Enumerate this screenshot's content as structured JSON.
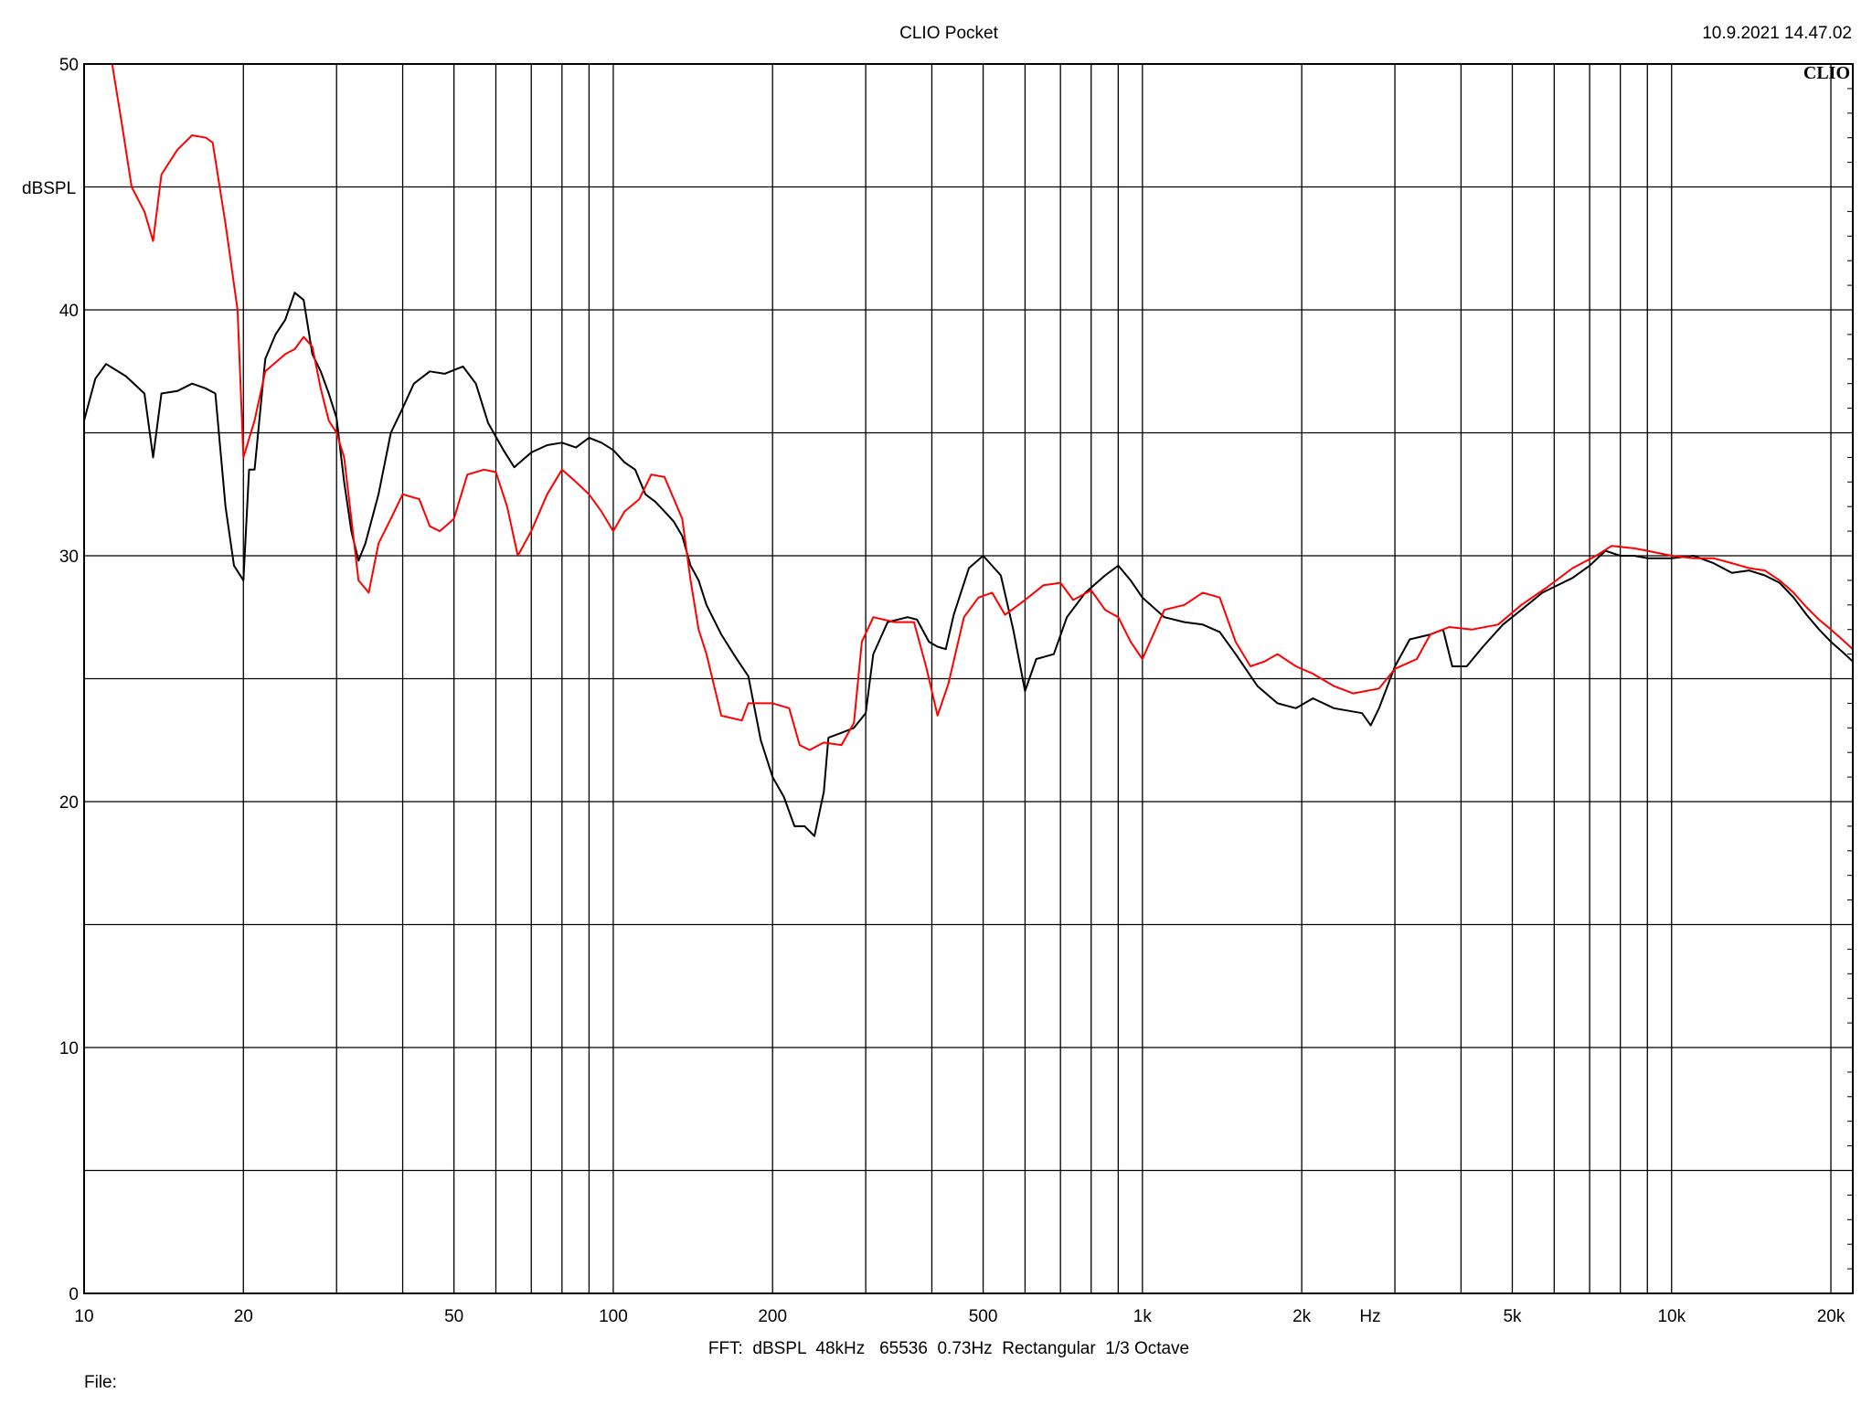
{
  "header": {
    "title": "CLIO Pocket",
    "timestamp": "10.9.2021 14.47.02",
    "logo": "CLIO"
  },
  "footer": {
    "settings": "FFT:  dBSPL  48kHz   65536  0.73Hz  Rectangular  1/3 Octave",
    "file_label": "File:"
  },
  "chart_data": {
    "type": "line",
    "title": "CLIO Pocket",
    "ylabel": "dBSPL",
    "xunit": "Hz",
    "xscale": "log",
    "xlim": [
      10,
      22000
    ],
    "ylim": [
      0,
      50
    ],
    "grid": true,
    "xticks": [
      {
        "value": 10,
        "label": "10"
      },
      {
        "value": 20,
        "label": "20"
      },
      {
        "value": 50,
        "label": "50"
      },
      {
        "value": 100,
        "label": "100"
      },
      {
        "value": 200,
        "label": "200"
      },
      {
        "value": 500,
        "label": "500"
      },
      {
        "value": 1000,
        "label": "1k"
      },
      {
        "value": 2000,
        "label": "2k"
      },
      {
        "value": 5000,
        "label": "5k"
      },
      {
        "value": 10000,
        "label": "10k"
      },
      {
        "value": 20000,
        "label": "20k"
      }
    ],
    "yticks": [
      0,
      10,
      20,
      30,
      40,
      50
    ],
    "colors": {
      "black": "#000000",
      "red": "#ff0000",
      "grid": "#000000"
    },
    "series": [
      {
        "color": "#000000",
        "points": [
          [
            10,
            35.5
          ],
          [
            10.5,
            37.2
          ],
          [
            11,
            37.8
          ],
          [
            12,
            37.3
          ],
          [
            13,
            36.6
          ],
          [
            13.5,
            34.0
          ],
          [
            14,
            36.6
          ],
          [
            15,
            36.7
          ],
          [
            16,
            37.0
          ],
          [
            17,
            36.8
          ],
          [
            17.7,
            36.6
          ],
          [
            18.5,
            32.0
          ],
          [
            19.2,
            29.6
          ],
          [
            20,
            29.0
          ],
          [
            20.5,
            33.5
          ],
          [
            21,
            33.5
          ],
          [
            22,
            38.0
          ],
          [
            23,
            39.0
          ],
          [
            24,
            39.6
          ],
          [
            25,
            40.7
          ],
          [
            26,
            40.4
          ],
          [
            27,
            38.2
          ],
          [
            28,
            37.5
          ],
          [
            29,
            36.6
          ],
          [
            30,
            35.6
          ],
          [
            31,
            33.0
          ],
          [
            32,
            31.0
          ],
          [
            33,
            29.8
          ],
          [
            34,
            30.5
          ],
          [
            36,
            32.5
          ],
          [
            38,
            35.0
          ],
          [
            40,
            36.0
          ],
          [
            42,
            37.0
          ],
          [
            45,
            37.5
          ],
          [
            48,
            37.4
          ],
          [
            52,
            37.7
          ],
          [
            55,
            37.0
          ],
          [
            58,
            35.4
          ],
          [
            62,
            34.3
          ],
          [
            65,
            33.6
          ],
          [
            70,
            34.2
          ],
          [
            75,
            34.5
          ],
          [
            80,
            34.6
          ],
          [
            85,
            34.4
          ],
          [
            90,
            34.8
          ],
          [
            95,
            34.6
          ],
          [
            100,
            34.3
          ],
          [
            105,
            33.8
          ],
          [
            110,
            33.5
          ],
          [
            115,
            32.5
          ],
          [
            120,
            32.2
          ],
          [
            125,
            31.8
          ],
          [
            130,
            31.4
          ],
          [
            135,
            30.8
          ],
          [
            140,
            29.6
          ],
          [
            145,
            29.0
          ],
          [
            150,
            28.0
          ],
          [
            160,
            26.8
          ],
          [
            170,
            25.9
          ],
          [
            180,
            25.1
          ],
          [
            190,
            22.5
          ],
          [
            200,
            21.0
          ],
          [
            210,
            20.2
          ],
          [
            220,
            19.0
          ],
          [
            230,
            19.0
          ],
          [
            240,
            18.6
          ],
          [
            250,
            20.4
          ],
          [
            255,
            22.6
          ],
          [
            270,
            22.8
          ],
          [
            285,
            23.0
          ],
          [
            300,
            23.6
          ],
          [
            310,
            26.0
          ],
          [
            330,
            27.3
          ],
          [
            360,
            27.5
          ],
          [
            375,
            27.4
          ],
          [
            395,
            26.5
          ],
          [
            410,
            26.3
          ],
          [
            425,
            26.2
          ],
          [
            440,
            27.6
          ],
          [
            470,
            29.5
          ],
          [
            500,
            30.0
          ],
          [
            540,
            29.2
          ],
          [
            570,
            27.0
          ],
          [
            600,
            24.5
          ],
          [
            630,
            25.8
          ],
          [
            680,
            26.0
          ],
          [
            720,
            27.5
          ],
          [
            780,
            28.5
          ],
          [
            850,
            29.2
          ],
          [
            900,
            29.6
          ],
          [
            950,
            29.0
          ],
          [
            1000,
            28.3
          ],
          [
            1100,
            27.5
          ],
          [
            1200,
            27.3
          ],
          [
            1300,
            27.2
          ],
          [
            1400,
            26.9
          ],
          [
            1500,
            26.0
          ],
          [
            1650,
            24.7
          ],
          [
            1800,
            24.0
          ],
          [
            1950,
            23.8
          ],
          [
            2100,
            24.2
          ],
          [
            2300,
            23.8
          ],
          [
            2600,
            23.6
          ],
          [
            2700,
            23.1
          ],
          [
            2800,
            23.8
          ],
          [
            3000,
            25.5
          ],
          [
            3200,
            26.6
          ],
          [
            3500,
            26.8
          ],
          [
            3700,
            27.0
          ],
          [
            3850,
            25.5
          ],
          [
            4100,
            25.5
          ],
          [
            4400,
            26.3
          ],
          [
            4800,
            27.2
          ],
          [
            5200,
            27.8
          ],
          [
            5700,
            28.5
          ],
          [
            6500,
            29.1
          ],
          [
            7000,
            29.6
          ],
          [
            7500,
            30.2
          ],
          [
            8000,
            30.0
          ],
          [
            8500,
            30.0
          ],
          [
            9000,
            29.9
          ],
          [
            10000,
            29.9
          ],
          [
            11000,
            30.0
          ],
          [
            12000,
            29.7
          ],
          [
            13000,
            29.3
          ],
          [
            14000,
            29.4
          ],
          [
            15000,
            29.2
          ],
          [
            16000,
            28.9
          ],
          [
            17000,
            28.3
          ],
          [
            18000,
            27.6
          ],
          [
            19000,
            27.0
          ],
          [
            20000,
            26.5
          ],
          [
            21000,
            26.1
          ],
          [
            22000,
            25.7
          ]
        ]
      },
      {
        "color": "#ff0000",
        "points": [
          [
            11.3,
            50.0
          ],
          [
            11.8,
            47.5
          ],
          [
            12.3,
            45.0
          ],
          [
            13.0,
            44.0
          ],
          [
            13.5,
            42.8
          ],
          [
            14,
            45.5
          ],
          [
            15,
            46.5
          ],
          [
            16,
            47.1
          ],
          [
            17,
            47.0
          ],
          [
            17.5,
            46.8
          ],
          [
            18.5,
            43.5
          ],
          [
            19.5,
            40.0
          ],
          [
            20,
            34.0
          ],
          [
            21,
            35.5
          ],
          [
            22,
            37.5
          ],
          [
            24,
            38.2
          ],
          [
            25,
            38.4
          ],
          [
            26,
            38.9
          ],
          [
            27,
            38.5
          ],
          [
            28,
            36.8
          ],
          [
            29,
            35.5
          ],
          [
            30,
            35.0
          ],
          [
            31,
            34.0
          ],
          [
            32,
            31.5
          ],
          [
            33,
            29.0
          ],
          [
            34.5,
            28.5
          ],
          [
            36,
            30.5
          ],
          [
            38,
            31.5
          ],
          [
            40,
            32.5
          ],
          [
            43,
            32.3
          ],
          [
            45,
            31.2
          ],
          [
            47,
            31.0
          ],
          [
            50,
            31.5
          ],
          [
            53,
            33.3
          ],
          [
            57,
            33.5
          ],
          [
            60,
            33.4
          ],
          [
            63,
            32.0
          ],
          [
            66,
            30.0
          ],
          [
            70,
            31.0
          ],
          [
            75,
            32.5
          ],
          [
            80,
            33.5
          ],
          [
            85,
            33.0
          ],
          [
            90,
            32.5
          ],
          [
            95,
            31.8
          ],
          [
            100,
            31.0
          ],
          [
            105,
            31.8
          ],
          [
            112,
            32.3
          ],
          [
            118,
            33.3
          ],
          [
            125,
            33.2
          ],
          [
            135,
            31.5
          ],
          [
            140,
            29.0
          ],
          [
            145,
            27.0
          ],
          [
            150,
            26.0
          ],
          [
            160,
            23.5
          ],
          [
            175,
            23.3
          ],
          [
            180,
            24.0
          ],
          [
            200,
            24.0
          ],
          [
            215,
            23.8
          ],
          [
            225,
            22.3
          ],
          [
            235,
            22.1
          ],
          [
            250,
            22.4
          ],
          [
            270,
            22.3
          ],
          [
            285,
            23.2
          ],
          [
            295,
            26.5
          ],
          [
            310,
            27.5
          ],
          [
            340,
            27.3
          ],
          [
            370,
            27.3
          ],
          [
            390,
            25.5
          ],
          [
            410,
            23.5
          ],
          [
            430,
            24.8
          ],
          [
            460,
            27.5
          ],
          [
            490,
            28.3
          ],
          [
            520,
            28.5
          ],
          [
            550,
            27.6
          ],
          [
            600,
            28.2
          ],
          [
            650,
            28.8
          ],
          [
            700,
            28.9
          ],
          [
            740,
            28.2
          ],
          [
            800,
            28.6
          ],
          [
            850,
            27.8
          ],
          [
            900,
            27.5
          ],
          [
            950,
            26.5
          ],
          [
            1000,
            25.8
          ],
          [
            1100,
            27.8
          ],
          [
            1200,
            28.0
          ],
          [
            1300,
            28.5
          ],
          [
            1400,
            28.3
          ],
          [
            1500,
            26.5
          ],
          [
            1600,
            25.5
          ],
          [
            1700,
            25.7
          ],
          [
            1800,
            26.0
          ],
          [
            1950,
            25.5
          ],
          [
            2100,
            25.2
          ],
          [
            2300,
            24.7
          ],
          [
            2500,
            24.4
          ],
          [
            2800,
            24.6
          ],
          [
            3000,
            25.4
          ],
          [
            3300,
            25.8
          ],
          [
            3500,
            26.8
          ],
          [
            3800,
            27.1
          ],
          [
            4200,
            27.0
          ],
          [
            4700,
            27.2
          ],
          [
            5200,
            28.0
          ],
          [
            5800,
            28.7
          ],
          [
            6500,
            29.5
          ],
          [
            7200,
            30.0
          ],
          [
            7700,
            30.4
          ],
          [
            8500,
            30.3
          ],
          [
            9000,
            30.2
          ],
          [
            10000,
            30.0
          ],
          [
            11000,
            29.9
          ],
          [
            12000,
            29.9
          ],
          [
            13000,
            29.7
          ],
          [
            14000,
            29.5
          ],
          [
            15000,
            29.4
          ],
          [
            16000,
            29.0
          ],
          [
            17000,
            28.5
          ],
          [
            18000,
            27.9
          ],
          [
            19000,
            27.4
          ],
          [
            20000,
            27.0
          ],
          [
            21000,
            26.6
          ],
          [
            22000,
            26.2
          ]
        ]
      }
    ]
  }
}
